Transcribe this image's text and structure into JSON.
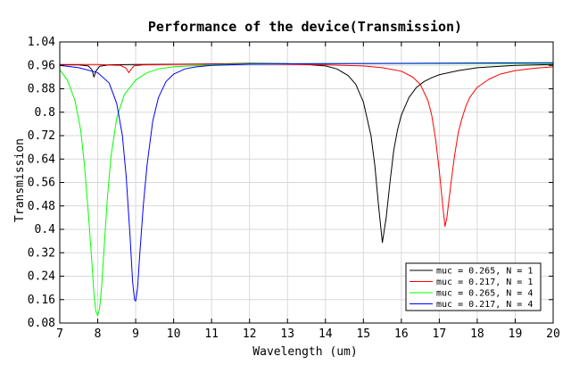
{
  "chart_data": {
    "type": "line",
    "title": "Performance of the device(Transmission)",
    "xlabel": "Wavelength (um)",
    "ylabel": "Transmission",
    "xlim": [
      7,
      20
    ],
    "ylim": [
      0.08,
      1.04
    ],
    "x_ticks": [
      "7",
      "8",
      "9",
      "10",
      "11",
      "12",
      "13",
      "14",
      "15",
      "16",
      "17",
      "18",
      "19",
      "20"
    ],
    "y_ticks": [
      "0.08",
      "0.16",
      "0.24",
      "0.32",
      "0.4",
      "0.48",
      "0.56",
      "0.64",
      "0.72",
      "0.8",
      "0.88",
      "0.96",
      "1.04"
    ],
    "grid": true,
    "legend_position": "bottom-right",
    "series": [
      {
        "name": "muc = 0.265, N = 1",
        "color": "#000000",
        "x": [
          7.0,
          7.5,
          7.75,
          7.85,
          7.9,
          7.95,
          8.05,
          8.3,
          9.0,
          10.0,
          11.0,
          12.0,
          13.0,
          13.5,
          14.0,
          14.3,
          14.6,
          14.8,
          15.0,
          15.2,
          15.3,
          15.4,
          15.5,
          15.6,
          15.7,
          15.8,
          15.9,
          16.0,
          16.2,
          16.4,
          16.6,
          16.8,
          17.0,
          17.5,
          18.0,
          19.0,
          20.0
        ],
        "y": [
          0.962,
          0.962,
          0.958,
          0.945,
          0.92,
          0.94,
          0.957,
          0.962,
          0.963,
          0.964,
          0.965,
          0.967,
          0.966,
          0.963,
          0.958,
          0.948,
          0.925,
          0.895,
          0.835,
          0.72,
          0.62,
          0.48,
          0.355,
          0.44,
          0.56,
          0.67,
          0.74,
          0.79,
          0.85,
          0.885,
          0.905,
          0.918,
          0.928,
          0.942,
          0.952,
          0.96,
          0.963
        ]
      },
      {
        "name": "muc = 0.217, N = 1",
        "color": "#ff0000",
        "x": [
          7.0,
          8.0,
          8.6,
          8.75,
          8.82,
          8.87,
          8.95,
          9.2,
          10.0,
          12.0,
          14.0,
          15.0,
          15.5,
          16.0,
          16.3,
          16.5,
          16.7,
          16.8,
          16.9,
          17.0,
          17.1,
          17.15,
          17.2,
          17.3,
          17.4,
          17.5,
          17.6,
          17.7,
          17.8,
          18.0,
          18.3,
          18.6,
          19.0,
          19.5,
          20.0
        ],
        "y": [
          0.963,
          0.963,
          0.96,
          0.95,
          0.935,
          0.945,
          0.958,
          0.962,
          0.963,
          0.965,
          0.962,
          0.958,
          0.952,
          0.94,
          0.92,
          0.895,
          0.84,
          0.79,
          0.71,
          0.6,
          0.47,
          0.41,
          0.44,
          0.55,
          0.65,
          0.73,
          0.78,
          0.82,
          0.85,
          0.885,
          0.912,
          0.93,
          0.942,
          0.95,
          0.955
        ]
      },
      {
        "name": "muc = 0.265, N = 4",
        "color": "#00ff00",
        "x": [
          7.0,
          7.2,
          7.4,
          7.55,
          7.65,
          7.75,
          7.85,
          7.9,
          7.95,
          8.0,
          8.05,
          8.1,
          8.15,
          8.2,
          8.25,
          8.35,
          8.5,
          8.7,
          9.0,
          9.3,
          9.6,
          10.0,
          11.0,
          12.0,
          14.0,
          16.0,
          18.0,
          20.0
        ],
        "y": [
          0.945,
          0.91,
          0.84,
          0.74,
          0.62,
          0.46,
          0.28,
          0.18,
          0.12,
          0.105,
          0.13,
          0.2,
          0.3,
          0.4,
          0.5,
          0.65,
          0.78,
          0.86,
          0.91,
          0.935,
          0.948,
          0.955,
          0.962,
          0.965,
          0.966,
          0.966,
          0.966,
          0.966
        ]
      },
      {
        "name": "muc = 0.217, N = 4",
        "color": "#0000ff",
        "x": [
          7.0,
          7.5,
          8.0,
          8.3,
          8.5,
          8.65,
          8.75,
          8.85,
          8.92,
          8.97,
          9.0,
          9.05,
          9.1,
          9.2,
          9.3,
          9.45,
          9.6,
          9.8,
          10.0,
          10.3,
          10.6,
          11.0,
          12.0,
          14.0,
          16.0,
          18.0,
          20.0
        ],
        "y": [
          0.96,
          0.952,
          0.935,
          0.9,
          0.83,
          0.72,
          0.58,
          0.38,
          0.22,
          0.16,
          0.155,
          0.2,
          0.3,
          0.48,
          0.62,
          0.77,
          0.85,
          0.905,
          0.93,
          0.948,
          0.955,
          0.96,
          0.964,
          0.966,
          0.967,
          0.968,
          0.969
        ]
      }
    ]
  }
}
